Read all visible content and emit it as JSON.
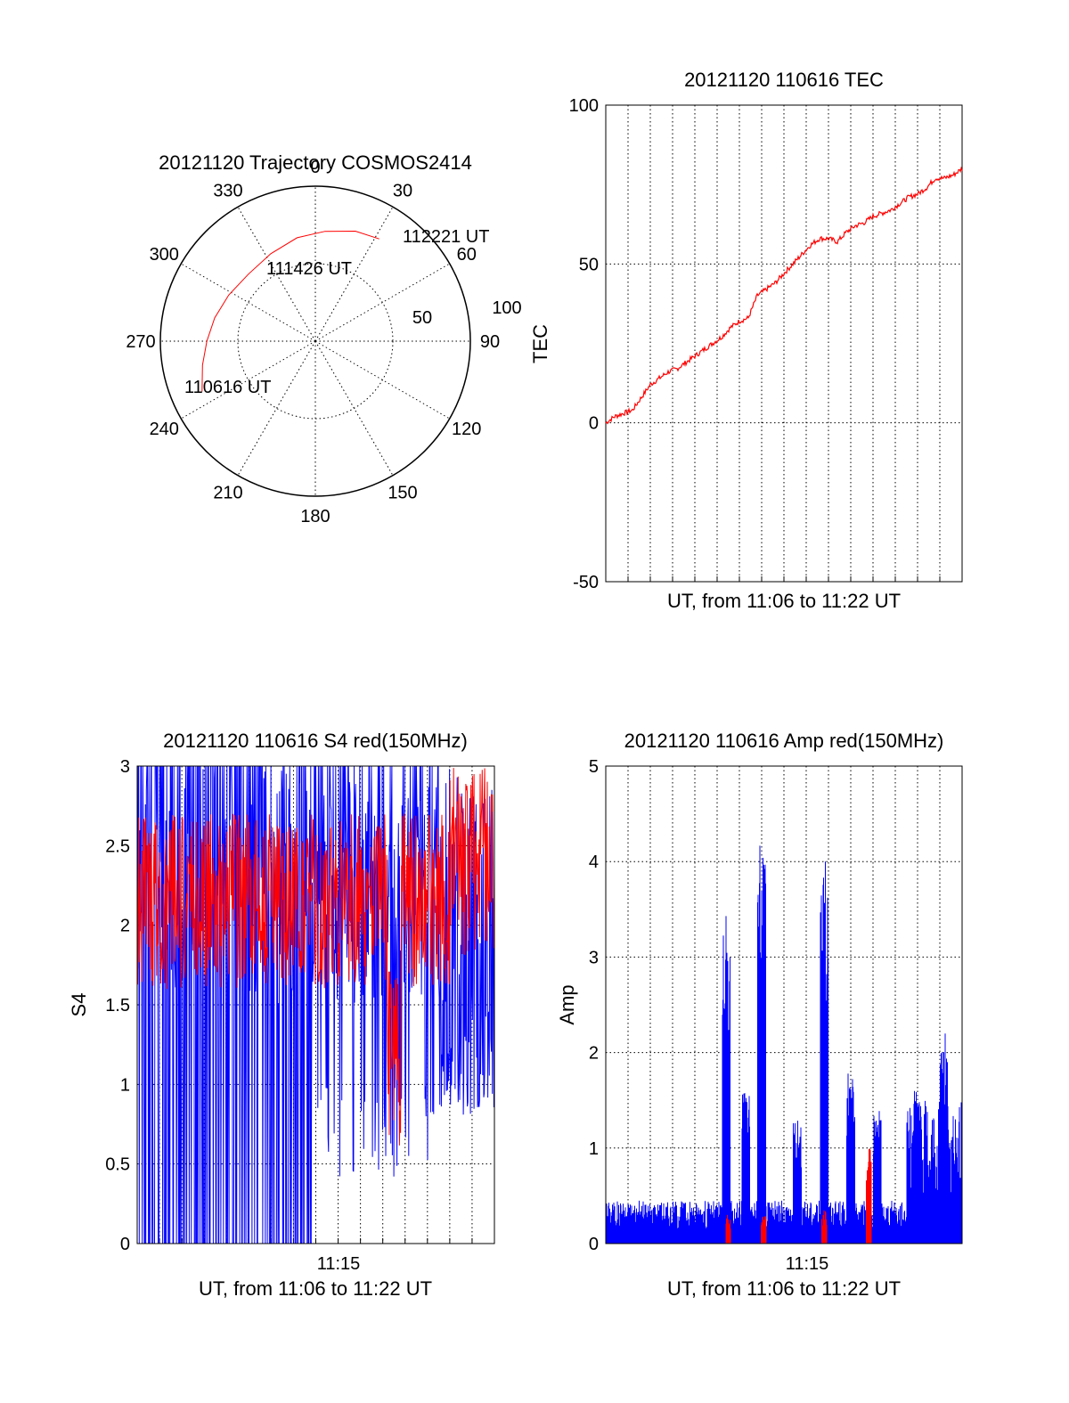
{
  "colors": {
    "red": "#ff0000",
    "blue": "#0000ff",
    "axis": "#000000",
    "grid": "#000000"
  },
  "chart_data": [
    {
      "id": "trajectory",
      "type": "polar",
      "title": "20121120 Trajectory COSMOS2414",
      "azimuth_labels": [
        "0",
        "30",
        "60",
        "90",
        "120",
        "150",
        "180",
        "210",
        "240",
        "270",
        "300",
        "330"
      ],
      "radial_labels": [
        "50",
        "100"
      ],
      "points": [
        {
          "label": "110616 UT",
          "azimuth": 246,
          "elevation": 18
        },
        {
          "label": "111426 UT",
          "azimuth": 315,
          "elevation": 35
        },
        {
          "label": "112221 UT",
          "azimuth": 32,
          "elevation": 20
        }
      ],
      "track": [
        [
          246,
          18
        ],
        [
          258,
          23
        ],
        [
          270,
          27
        ],
        [
          283,
          30
        ],
        [
          298,
          33
        ],
        [
          315,
          35
        ],
        [
          333,
          33
        ],
        [
          350,
          29
        ],
        [
          5,
          26
        ],
        [
          20,
          22
        ],
        [
          32,
          20
        ]
      ],
      "grid": true
    },
    {
      "id": "tec",
      "type": "line",
      "title": "20121120 110616 TEC",
      "xlabel": "UT, from 11:06 to 11:22 UT",
      "ylabel": "TEC",
      "xlim": [
        0,
        16
      ],
      "ylim": [
        -50,
        100
      ],
      "yticks": [
        "-50",
        "0",
        "50",
        "100"
      ],
      "grid": true,
      "series": [
        {
          "color": "red",
          "x": [
            0,
            0.4,
            0.8,
            1.2,
            1.6,
            2,
            2.4,
            2.8,
            3.2,
            3.6,
            4,
            4.4,
            4.8,
            5.2,
            5.6,
            6,
            6.4,
            6.8,
            7.2,
            7.6,
            8,
            8.4,
            8.8,
            9.2,
            9.6,
            10,
            10.4,
            10.8,
            11.2,
            11.6,
            12,
            12.4,
            12.8,
            13.2,
            13.6,
            14,
            14.4,
            14.8,
            15.2,
            15.6,
            16
          ],
          "y": [
            0,
            2,
            3,
            4,
            8,
            12,
            14,
            16,
            17,
            19,
            21,
            23,
            25,
            27,
            30,
            32,
            33,
            40,
            42,
            44,
            47,
            50,
            53,
            56,
            58,
            58,
            57,
            60,
            62,
            63,
            65,
            66,
            67,
            69,
            71,
            72,
            74,
            77,
            77,
            78,
            80
          ]
        }
      ]
    },
    {
      "id": "s4",
      "type": "line",
      "title": "20121120 110616 S4 red(150MHz)",
      "xlabel": "UT, from 11:06 to 11:22 UT",
      "ylabel": "S4",
      "xlim": [
        0,
        16
      ],
      "ylim": [
        0,
        3
      ],
      "yticks": [
        "0",
        "0.5",
        "1",
        "1.5",
        "2",
        "2.5",
        "3"
      ],
      "xticks": [
        {
          "x": 9,
          "label": "11:15"
        }
      ],
      "grid": true,
      "series": [
        {
          "color": "blue",
          "note": "dense noisy S4 series, frequently saturating 0 to 3 before 11:14, then 0.3 to 3"
        },
        {
          "color": "red",
          "note": "noisy S4 series ranging roughly 1.4 to 3, dip to 0.6 near 11:18"
        }
      ]
    },
    {
      "id": "amp",
      "type": "bar",
      "title": "20121120 110616 Amp red(150MHz)",
      "xlabel": "UT, from 11:06 to 11:22 UT",
      "ylabel": "Amp",
      "xlim": [
        0,
        16
      ],
      "ylim": [
        0,
        5
      ],
      "yticks": [
        "0",
        "1",
        "2",
        "3",
        "4",
        "5"
      ],
      "xticks": [
        {
          "x": 9,
          "label": "11:15"
        }
      ],
      "grid": true,
      "series": [
        {
          "color": "blue",
          "peaks": [
            {
              "x": 5.4,
              "y": 3.5
            },
            {
              "x": 6.3,
              "y": 1.7
            },
            {
              "x": 7.0,
              "y": 4.3
            },
            {
              "x": 8.6,
              "y": 1.3
            },
            {
              "x": 9.8,
              "y": 4.0
            },
            {
              "x": 11.0,
              "y": 1.8
            },
            {
              "x": 12.2,
              "y": 1.4
            },
            {
              "x": 14.0,
              "y": 1.6
            },
            {
              "x": 15.2,
              "y": 2.2
            }
          ]
        },
        {
          "color": "red",
          "peaks": [
            {
              "x": 5.5,
              "y": 0.3
            },
            {
              "x": 7.1,
              "y": 0.3
            },
            {
              "x": 9.8,
              "y": 0.35
            },
            {
              "x": 11.8,
              "y": 1.0
            }
          ]
        }
      ]
    }
  ]
}
